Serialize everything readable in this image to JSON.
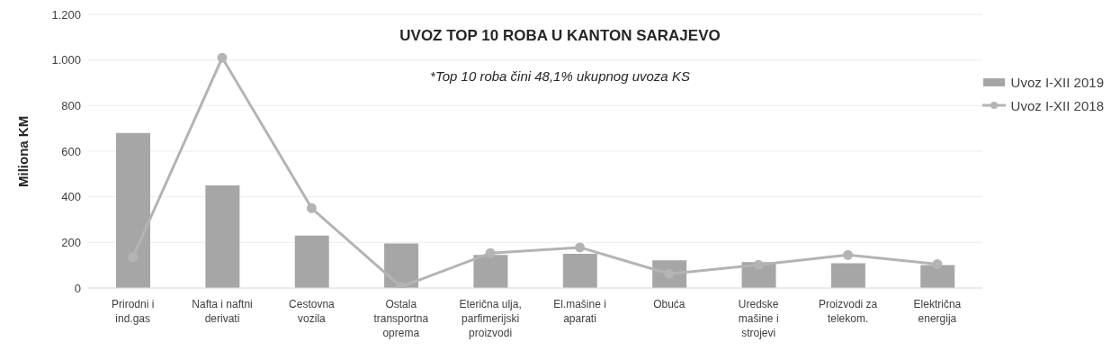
{
  "chart_data": {
    "type": "bar",
    "title": "UVOZ TOP 10 ROBA U KANTON SARAJEVO",
    "ylabel": "Miliona KM",
    "annotations": [
      "*Top 10 roba čini 48,1% ukupnog uvoza KS"
    ],
    "categories": [
      "Prirodni i ind.gas",
      "Nafta i naftni derivati",
      "Cestovna vozila",
      "Ostala transportna oprema",
      "Eterična ulja, parfimerijski proizvodi",
      "El.mašine i aparati",
      "Obuća",
      "Uredske mašine i strojevi",
      "Proizvodi za telekom.",
      "Električna energija"
    ],
    "series": [
      {
        "name": "Uvoz I-XII 2019",
        "color": "#a6a6a6",
        "values": [
          680,
          450,
          230,
          195,
          145,
          150,
          121,
          113,
          109,
          101
        ]
      },
      {
        "name": "Uvoz I-XII 2018",
        "type": "line",
        "color": "#b4b4b4",
        "marker": "circle",
        "values": [
          135,
          1010,
          350,
          5,
          153,
          178,
          62,
          102,
          145,
          105
        ]
      }
    ],
    "ylim": [
      0,
      1200
    ],
    "yticks": [
      {
        "value": 0,
        "label": "0"
      },
      {
        "value": 200,
        "label": "200"
      },
      {
        "value": 400,
        "label": "400"
      },
      {
        "value": 600,
        "label": "600"
      },
      {
        "value": 800,
        "label": "800"
      },
      {
        "value": 1000,
        "label": "1.000"
      },
      {
        "value": 1200,
        "label": "1.200"
      }
    ],
    "grid": "y",
    "legend": "top right"
  }
}
